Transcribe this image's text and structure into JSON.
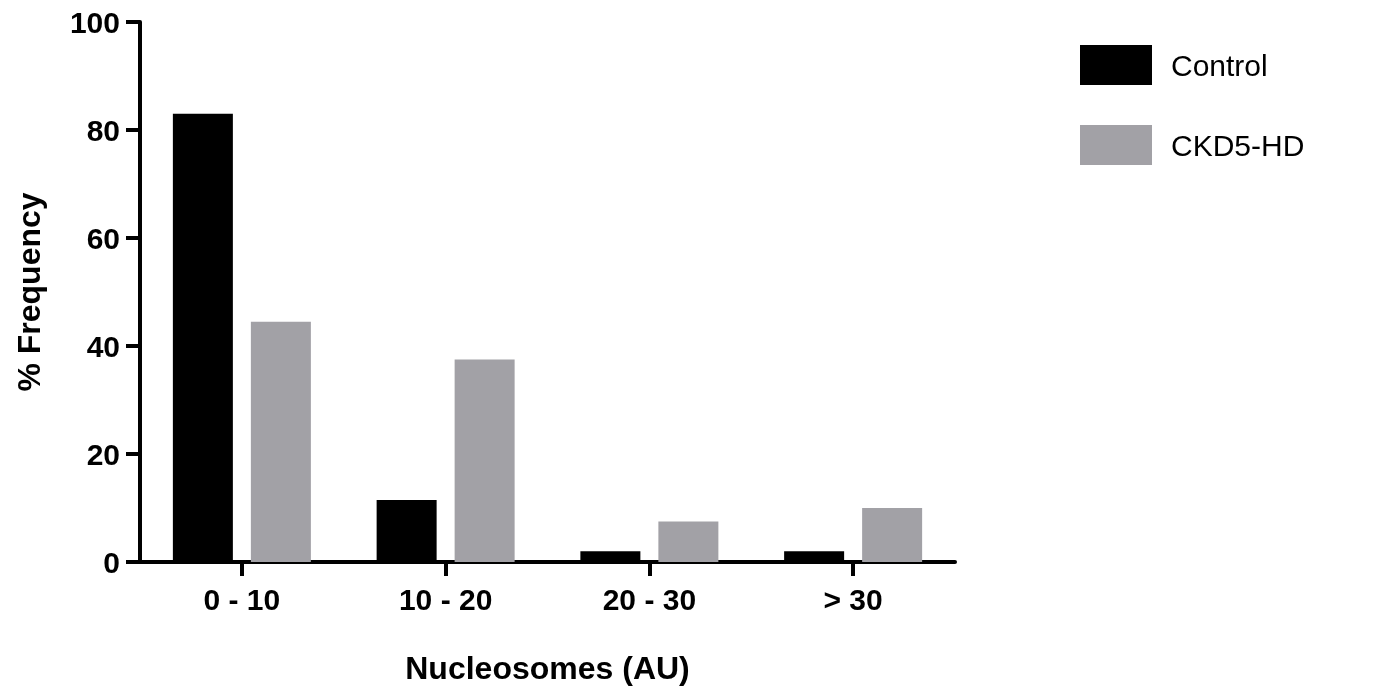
{
  "chart_data": {
    "type": "bar",
    "xlabel": "Nucleosomes (AU)",
    "ylabel": "% Frequency",
    "categories": [
      "0 - 10",
      "10 - 20",
      "20 - 30",
      "> 30"
    ],
    "series": [
      {
        "name": "Control",
        "color": "#000000",
        "values": [
          83,
          11.5,
          2,
          2
        ]
      },
      {
        "name": "CKD5-HD",
        "color": "#a2a1a6",
        "values": [
          44.5,
          37.5,
          7.5,
          10
        ]
      }
    ],
    "ylim": [
      0,
      100
    ],
    "yticks": [
      0,
      20,
      40,
      60,
      80,
      100
    ],
    "grid": false,
    "legend": "top right"
  }
}
